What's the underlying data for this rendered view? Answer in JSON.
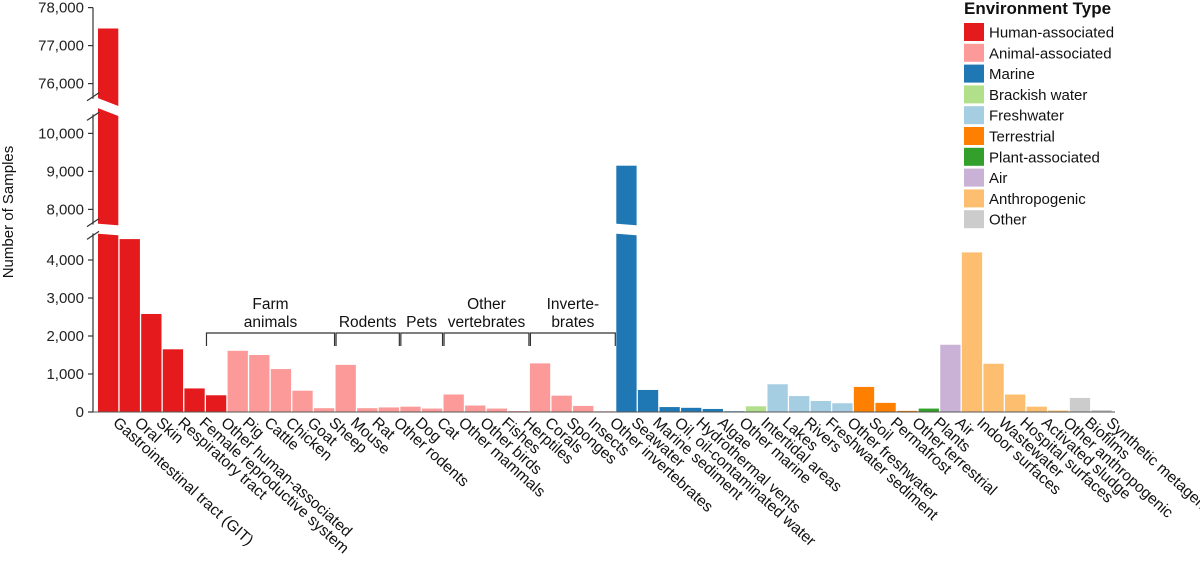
{
  "chart_data": {
    "type": "bar",
    "ylabel": "Number of Samples",
    "axis_breaks": [
      [
        4700,
        7600
      ],
      [
        10500,
        75600
      ]
    ],
    "ylim": [
      0,
      78000
    ],
    "yticks": [
      {
        "value": 0,
        "label": "0"
      },
      {
        "value": 1000,
        "label": "1,000"
      },
      {
        "value": 2000,
        "label": "2,000"
      },
      {
        "value": 3000,
        "label": "3,000"
      },
      {
        "value": 4000,
        "label": "4,000"
      },
      {
        "value": 8000,
        "label": "8,000"
      },
      {
        "value": 9000,
        "label": "9,000"
      },
      {
        "value": 10000,
        "label": "10,000"
      },
      {
        "value": 76000,
        "label": "76,000"
      },
      {
        "value": 77000,
        "label": "77,000"
      },
      {
        "value": 78000,
        "label": "78,000"
      }
    ],
    "legend": {
      "title": "Environment Type",
      "position": "top-right",
      "items": [
        {
          "name": "Human-associated",
          "color": "#e41a1c"
        },
        {
          "name": "Animal-associated",
          "color": "#fb9a99"
        },
        {
          "name": "Marine",
          "color": "#1f78b4"
        },
        {
          "name": "Brackish water",
          "color": "#b2df8a"
        },
        {
          "name": "Freshwater",
          "color": "#a6cee3"
        },
        {
          "name": "Terrestrial",
          "color": "#ff7f00"
        },
        {
          "name": "Plant-associated",
          "color": "#33a02c"
        },
        {
          "name": "Air",
          "color": "#cab2d6"
        },
        {
          "name": "Anthropogenic",
          "color": "#fdbf6f"
        },
        {
          "name": "Other",
          "color": "#cccccc"
        }
      ]
    },
    "groups": [
      {
        "lines": [
          "Farm",
          "animals"
        ],
        "from": 6,
        "to": 11
      },
      {
        "lines": [
          "Rodents"
        ],
        "from": 12,
        "to": 14
      },
      {
        "lines": [
          "Pets"
        ],
        "from": 15,
        "to": 16
      },
      {
        "lines": [
          "Other",
          "vertebrates"
        ],
        "from": 17,
        "to": 20
      },
      {
        "lines": [
          "Inverte-",
          "brates"
        ],
        "from": 21,
        "to": 24
      }
    ],
    "categories": [
      {
        "label": "Gastrointestinal tract (GIT)",
        "value": 77450,
        "type": "Human-associated"
      },
      {
        "label": "Oral",
        "value": 4550,
        "type": "Human-associated"
      },
      {
        "label": "Skin",
        "value": 2580,
        "type": "Human-associated"
      },
      {
        "label": "Respiratory tract",
        "value": 1650,
        "type": "Human-associated"
      },
      {
        "label": "Female reproductive system",
        "value": 620,
        "type": "Human-associated"
      },
      {
        "label": "Other human-associated",
        "value": 440,
        "type": "Human-associated"
      },
      {
        "label": "Pig",
        "value": 1610,
        "type": "Animal-associated"
      },
      {
        "label": "Cattle",
        "value": 1500,
        "type": "Animal-associated"
      },
      {
        "label": "Chicken",
        "value": 1130,
        "type": "Animal-associated"
      },
      {
        "label": "Goat",
        "value": 560,
        "type": "Animal-associated"
      },
      {
        "label": "Sheep",
        "value": 100,
        "type": "Animal-associated"
      },
      {
        "label": "Mouse",
        "value": 1240,
        "type": "Animal-associated"
      },
      {
        "label": "Rat",
        "value": 100,
        "type": "Animal-associated"
      },
      {
        "label": "Other rodents",
        "value": 120,
        "type": "Animal-associated"
      },
      {
        "label": "Dog",
        "value": 140,
        "type": "Animal-associated"
      },
      {
        "label": "Cat",
        "value": 90,
        "type": "Animal-associated"
      },
      {
        "label": "Other mammals",
        "value": 460,
        "type": "Animal-associated"
      },
      {
        "label": "Other birds",
        "value": 170,
        "type": "Animal-associated"
      },
      {
        "label": "Fishes",
        "value": 90,
        "type": "Animal-associated"
      },
      {
        "label": "Herptiles",
        "value": 25,
        "type": "Animal-associated"
      },
      {
        "label": "Corals",
        "value": 1280,
        "type": "Animal-associated"
      },
      {
        "label": "Sponges",
        "value": 430,
        "type": "Animal-associated"
      },
      {
        "label": "Insects",
        "value": 160,
        "type": "Animal-associated"
      },
      {
        "label": "Other invertebrates",
        "value": 20,
        "type": "Animal-associated"
      },
      {
        "label": "Seawater",
        "value": 9150,
        "type": "Marine"
      },
      {
        "label": "Marine sediment",
        "value": 580,
        "type": "Marine"
      },
      {
        "label": "Oil, oil-contaminated water",
        "value": 130,
        "type": "Marine"
      },
      {
        "label": "Hydrothermal vents",
        "value": 110,
        "type": "Marine"
      },
      {
        "label": "Algae",
        "value": 80,
        "type": "Marine"
      },
      {
        "label": "Other marine",
        "value": 20,
        "type": "Marine"
      },
      {
        "label": "Intertidal areas",
        "value": 150,
        "type": "Brackish water"
      },
      {
        "label": "Lakes",
        "value": 730,
        "type": "Freshwater"
      },
      {
        "label": "Rivers",
        "value": 420,
        "type": "Freshwater"
      },
      {
        "label": "Freshwater sediment",
        "value": 290,
        "type": "Freshwater"
      },
      {
        "label": "Other freshwater",
        "value": 230,
        "type": "Freshwater"
      },
      {
        "label": "Soil",
        "value": 660,
        "type": "Terrestrial"
      },
      {
        "label": "Permafrost",
        "value": 240,
        "type": "Terrestrial"
      },
      {
        "label": "Other terrestrial",
        "value": 30,
        "type": "Terrestrial"
      },
      {
        "label": "Plants",
        "value": 90,
        "type": "Plant-associated"
      },
      {
        "label": "Air",
        "value": 1770,
        "type": "Air"
      },
      {
        "label": "Indoor surfaces",
        "value": 4200,
        "type": "Anthropogenic"
      },
      {
        "label": "Wastewater",
        "value": 1270,
        "type": "Anthropogenic"
      },
      {
        "label": "Hospital surfaces",
        "value": 460,
        "type": "Anthropogenic"
      },
      {
        "label": "Activated sludge",
        "value": 140,
        "type": "Anthropogenic"
      },
      {
        "label": "Other anthropogenic",
        "value": 40,
        "type": "Anthropogenic"
      },
      {
        "label": "Biofilms",
        "value": 370,
        "type": "Other"
      },
      {
        "label": "Synthetic metagenome",
        "value": 50,
        "type": "Other"
      }
    ]
  }
}
